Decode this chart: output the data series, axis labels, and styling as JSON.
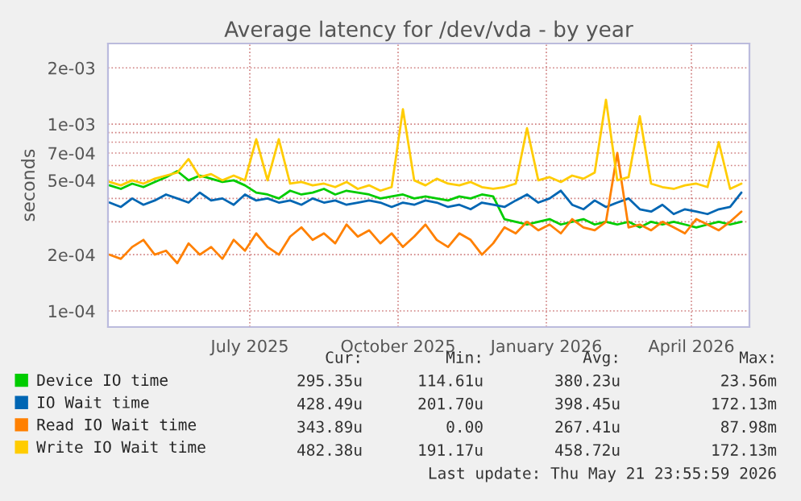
{
  "chart_data": {
    "type": "line",
    "title": "Average latency for /dev/vda - by year",
    "ylabel": "seconds",
    "x": [
      "2025-04-05",
      "2025-04-12",
      "2025-04-19",
      "2025-04-26",
      "2025-05-03",
      "2025-05-10",
      "2025-05-17",
      "2025-05-24",
      "2025-05-31",
      "2025-06-07",
      "2025-06-14",
      "2025-06-21",
      "2025-06-28",
      "2025-07-05",
      "2025-07-12",
      "2025-07-19",
      "2025-07-26",
      "2025-08-02",
      "2025-08-09",
      "2025-08-16",
      "2025-08-23",
      "2025-08-30",
      "2025-09-06",
      "2025-09-13",
      "2025-09-20",
      "2025-09-27",
      "2025-10-04",
      "2025-10-11",
      "2025-10-18",
      "2025-10-25",
      "2025-11-01",
      "2025-11-08",
      "2025-11-15",
      "2025-11-22",
      "2025-11-29",
      "2025-12-06",
      "2025-12-13",
      "2025-12-20",
      "2025-12-27",
      "2026-01-03",
      "2026-01-10",
      "2026-01-17",
      "2026-01-24",
      "2026-01-31",
      "2026-02-07",
      "2026-02-14",
      "2026-02-21",
      "2026-02-28",
      "2026-03-07",
      "2026-03-14",
      "2026-03-21",
      "2026-03-28",
      "2026-04-04",
      "2026-04-11",
      "2026-04-18",
      "2026-04-25",
      "2026-05-02"
    ],
    "series": [
      {
        "name": "Device IO time",
        "color": "#00cc00",
        "values": [
          0.00047,
          0.00045,
          0.00048,
          0.00046,
          0.00049,
          0.00052,
          0.00056,
          0.0005,
          0.00053,
          0.00051,
          0.00049,
          0.0005,
          0.00047,
          0.00043,
          0.00042,
          0.0004,
          0.00044,
          0.00042,
          0.00043,
          0.00045,
          0.00042,
          0.00044,
          0.00043,
          0.00042,
          0.0004,
          0.00041,
          0.00042,
          0.0004,
          0.00041,
          0.0004,
          0.00039,
          0.00041,
          0.0004,
          0.00042,
          0.00041,
          0.00031,
          0.0003,
          0.00029,
          0.0003,
          0.00031,
          0.00029,
          0.0003,
          0.00031,
          0.00029,
          0.0003,
          0.00029,
          0.0003,
          0.00028,
          0.0003,
          0.00029,
          0.0003,
          0.00029,
          0.00028,
          0.00029,
          0.0003,
          0.00029,
          0.0003
        ]
      },
      {
        "name": "IO Wait time",
        "color": "#0066b3",
        "values": [
          0.00038,
          0.00036,
          0.0004,
          0.00037,
          0.00039,
          0.00042,
          0.0004,
          0.00038,
          0.00043,
          0.00039,
          0.0004,
          0.00037,
          0.00042,
          0.00039,
          0.0004,
          0.00038,
          0.00039,
          0.00037,
          0.0004,
          0.00038,
          0.00039,
          0.00037,
          0.00038,
          0.00039,
          0.00038,
          0.00036,
          0.00038,
          0.00037,
          0.00039,
          0.00038,
          0.00036,
          0.00037,
          0.00035,
          0.00038,
          0.00037,
          0.00036,
          0.00039,
          0.00042,
          0.00038,
          0.0004,
          0.00044,
          0.00037,
          0.00035,
          0.00039,
          0.00036,
          0.00038,
          0.0004,
          0.00035,
          0.00034,
          0.00037,
          0.00033,
          0.00035,
          0.00034,
          0.00033,
          0.00035,
          0.00036,
          0.00043
        ]
      },
      {
        "name": "Read IO Wait time",
        "color": "#ff8000",
        "values": [
          0.0002,
          0.00019,
          0.00022,
          0.00024,
          0.0002,
          0.00021,
          0.00018,
          0.00023,
          0.0002,
          0.00022,
          0.00019,
          0.00024,
          0.00021,
          0.00026,
          0.00022,
          0.0002,
          0.00025,
          0.00028,
          0.00024,
          0.00026,
          0.00023,
          0.00029,
          0.00025,
          0.00027,
          0.00023,
          0.00026,
          0.00022,
          0.00025,
          0.00029,
          0.00024,
          0.00022,
          0.00026,
          0.00024,
          0.0002,
          0.00023,
          0.00028,
          0.00026,
          0.0003,
          0.00027,
          0.00029,
          0.00026,
          0.00031,
          0.00028,
          0.00027,
          0.0003,
          0.0007,
          0.00028,
          0.00029,
          0.00027,
          0.0003,
          0.00028,
          0.00026,
          0.00031,
          0.00029,
          0.00027,
          0.0003,
          0.00034
        ]
      },
      {
        "name": "Write IO Wait time",
        "color": "#ffcc00",
        "values": [
          0.00049,
          0.00047,
          0.0005,
          0.00048,
          0.00051,
          0.00053,
          0.00055,
          0.00065,
          0.00052,
          0.00054,
          0.0005,
          0.00053,
          0.0005,
          0.00083,
          0.0005,
          0.00083,
          0.00048,
          0.00049,
          0.00047,
          0.00048,
          0.00046,
          0.00049,
          0.00045,
          0.00047,
          0.00044,
          0.00046,
          0.0012,
          0.0005,
          0.00047,
          0.00051,
          0.00048,
          0.00047,
          0.00049,
          0.00046,
          0.00045,
          0.00046,
          0.00048,
          0.00095,
          0.0005,
          0.00052,
          0.00049,
          0.00053,
          0.00051,
          0.00055,
          0.00135,
          0.0005,
          0.00052,
          0.0011,
          0.00048,
          0.00046,
          0.00045,
          0.00047,
          0.00048,
          0.00046,
          0.0008,
          0.00045,
          0.00048
        ]
      }
    ],
    "log": true,
    "xlim": [
      "2025-04-04",
      "2026-05-07"
    ],
    "ylim": [
      8.2e-05,
      0.0027
    ],
    "xticks": [
      {
        "value": "2025-07-01",
        "label": "July 2025"
      },
      {
        "value": "2025-10-01",
        "label": "October 2025"
      },
      {
        "value": "2026-01-01",
        "label": "January 2026"
      },
      {
        "value": "2026-04-01",
        "label": "April 2026"
      }
    ],
    "yticks": [
      {
        "value": 0.0001,
        "label": "1e-04"
      },
      {
        "value": 0.0002,
        "label": "2e-04"
      },
      {
        "value": 0.0003,
        "label": null
      },
      {
        "value": 0.0004,
        "label": null
      },
      {
        "value": 0.0005,
        "label": "5e-04"
      },
      {
        "value": 0.0006,
        "label": null
      },
      {
        "value": 0.0007,
        "label": "7e-04"
      },
      {
        "value": 0.0008,
        "label": null
      },
      {
        "value": 0.0009,
        "label": null
      },
      {
        "value": 0.001,
        "label": "1e-03"
      },
      {
        "value": 0.002,
        "label": "2e-03"
      }
    ],
    "grid": true,
    "legend": "bottom",
    "marker": "none",
    "line_style": "solid",
    "annotations": [
      "Cur:",
      "Min:",
      "Avg:",
      "Max:",
      "295.35u",
      "114.61u",
      "380.23u",
      "23.56m",
      "428.49u",
      "201.70u",
      "398.45u",
      "172.13m",
      "343.89u",
      "0.00",
      "267.41u",
      "87.98m",
      "482.38u",
      "191.17u",
      "458.72u",
      "172.13m",
      "Last update: Thu May 21 23:55:59 2026"
    ]
  }
}
